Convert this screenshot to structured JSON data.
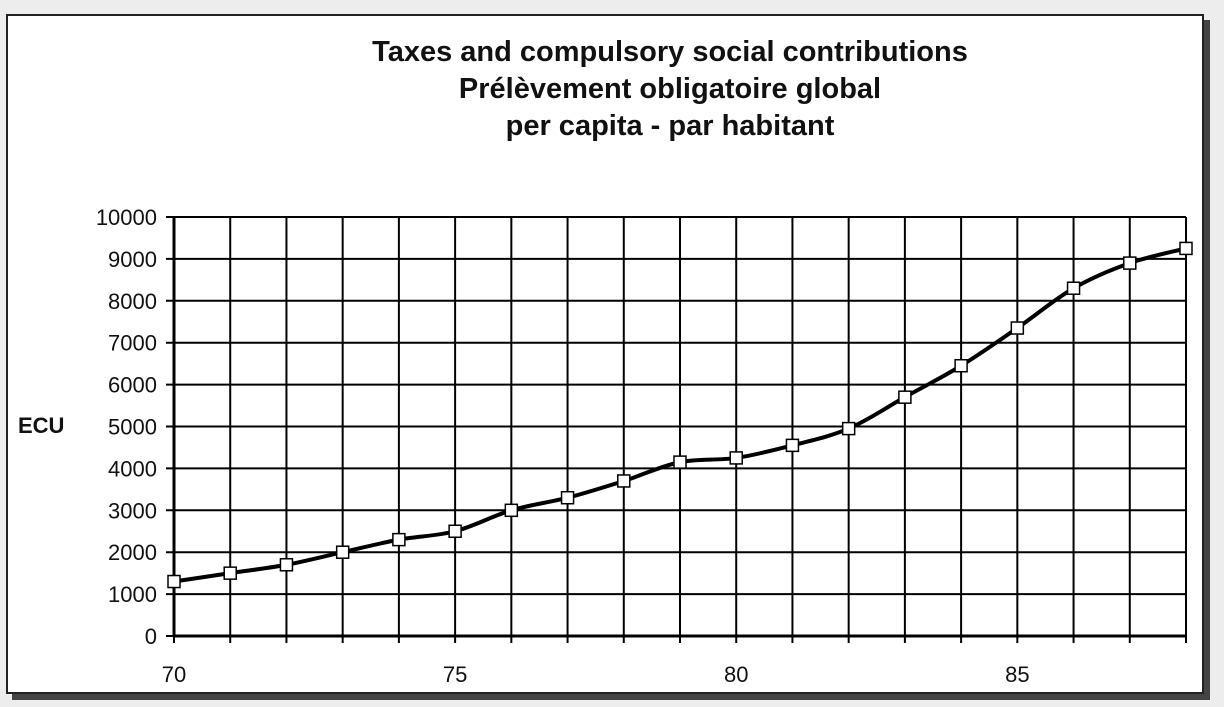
{
  "chart_data": {
    "type": "line",
    "title": [
      "Taxes and compulsory social contributions",
      "Prélèvement obligatoire global",
      "per capita - par habitant"
    ],
    "xlabel": "",
    "ylabel": "ECU",
    "xlim": [
      70,
      88
    ],
    "ylim": [
      0,
      10000
    ],
    "x_ticks": [
      70,
      75,
      80,
      85
    ],
    "y_ticks": [
      0,
      1000,
      2000,
      3000,
      4000,
      5000,
      6000,
      7000,
      8000,
      9000,
      10000
    ],
    "grid": true,
    "x": [
      70,
      71,
      72,
      73,
      74,
      75,
      76,
      77,
      78,
      79,
      80,
      81,
      82,
      83,
      84,
      85,
      86,
      87,
      88
    ],
    "series": [
      {
        "values": [
          1300,
          1500,
          1700,
          2000,
          2300,
          2500,
          3000,
          3300,
          3700,
          4150,
          4250,
          4550,
          4950,
          5700,
          6450,
          7350,
          8300,
          8900,
          9250
        ]
      }
    ],
    "colors": {
      "line": "#000000",
      "marker_fill": "#ffffff",
      "grid": "#000000"
    }
  }
}
